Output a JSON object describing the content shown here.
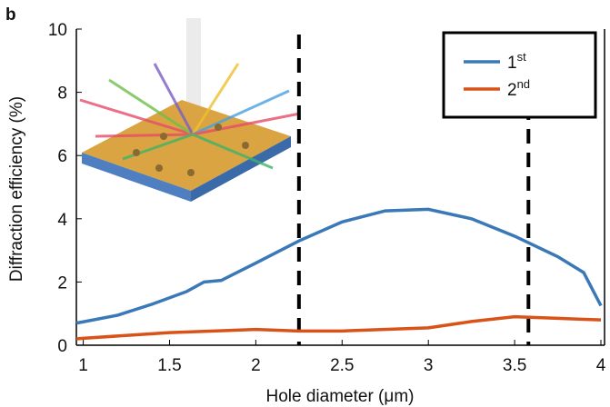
{
  "chart_data": {
    "type": "line",
    "panel_label": "b",
    "x_label": "Hole diameter (μm)",
    "y_label": "Diffraction efficiency (%)",
    "xlim": [
      0.96,
      4.0
    ],
    "ylim": [
      0,
      10
    ],
    "xticks": [
      1,
      1.5,
      2,
      2.5,
      3,
      3.5,
      4
    ],
    "yticks": [
      0,
      2,
      4,
      6,
      8,
      10
    ],
    "vlines": [
      2.25,
      3.58
    ],
    "legend": "upper right",
    "series": [
      {
        "name": "1st",
        "color": "#3a78b8",
        "x": [
          0.96,
          1.0,
          1.2,
          1.4,
          1.6,
          1.7,
          1.8,
          2.0,
          2.25,
          2.5,
          2.75,
          3.0,
          3.25,
          3.5,
          3.75,
          3.9,
          4.0
        ],
        "values": [
          0.7,
          0.74,
          0.95,
          1.3,
          1.7,
          2.0,
          2.05,
          2.6,
          3.3,
          3.9,
          4.25,
          4.3,
          4.0,
          3.45,
          2.8,
          2.3,
          1.25
        ]
      },
      {
        "name": "2nd",
        "color": "#d95319",
        "x": [
          0.96,
          1.0,
          1.5,
          2.0,
          2.25,
          2.5,
          3.0,
          3.25,
          3.5,
          3.75,
          4.0
        ],
        "values": [
          0.2,
          0.22,
          0.4,
          0.5,
          0.45,
          0.45,
          0.55,
          0.75,
          0.9,
          0.85,
          0.8
        ]
      }
    ]
  }
}
